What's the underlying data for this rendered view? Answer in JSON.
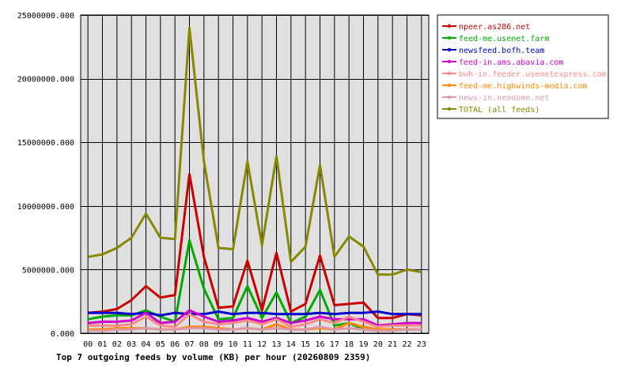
{
  "chart_data": {
    "type": "line",
    "title": "Top 7 outgoing feeds by volume (KB) per hour (20260809 2359)",
    "xlabel": "",
    "ylabel": "",
    "ylim": [
      0,
      25000000
    ],
    "yticks": [
      "0.000",
      "5000000.000",
      "10000000.000",
      "15000000.000",
      "20000000.000",
      "25000000.000"
    ],
    "grid": true,
    "legend_position": "right",
    "x": [
      "00",
      "01",
      "02",
      "03",
      "04",
      "05",
      "06",
      "07",
      "08",
      "09",
      "10",
      "11",
      "12",
      "13",
      "14",
      "15",
      "16",
      "17",
      "18",
      "19",
      "20",
      "21",
      "22",
      "23"
    ],
    "series": [
      {
        "name": "npeer.as286.net",
        "color": "#cc0000",
        "values": [
          1600000,
          1700000,
          1900000,
          2600000,
          3700000,
          2800000,
          3000000,
          12500000,
          6000000,
          2000000,
          2100000,
          5700000,
          1800000,
          6300000,
          1700000,
          2300000,
          6100000,
          2200000,
          2300000,
          2400000,
          1200000,
          1200000,
          1500000,
          1400000
        ]
      },
      {
        "name": "feed-me.usenet.farm",
        "color": "#00aa00",
        "values": [
          1100000,
          1300000,
          1400000,
          1400000,
          1800000,
          1300000,
          900000,
          7300000,
          3500000,
          1100000,
          1200000,
          3700000,
          1200000,
          3200000,
          800000,
          1300000,
          3400000,
          600000,
          800000,
          300000,
          200000,
          300000,
          300000,
          300000
        ]
      },
      {
        "name": "newsfeed.bofh.team",
        "color": "#0000cc",
        "values": [
          1600000,
          1600000,
          1600000,
          1500000,
          1600000,
          1400000,
          1600000,
          1500000,
          1500000,
          1700000,
          1500000,
          1600000,
          1600000,
          1500000,
          1500000,
          1500000,
          1600000,
          1500000,
          1600000,
          1600000,
          1700000,
          1500000,
          1500000,
          1500000
        ]
      },
      {
        "name": "feed-in.ams.abavia.com",
        "color": "#cc00cc",
        "values": [
          800000,
          900000,
          900000,
          1000000,
          1600000,
          800000,
          900000,
          1800000,
          1300000,
          900000,
          1000000,
          1200000,
          900000,
          1200000,
          800000,
          1000000,
          1300000,
          1100000,
          1100000,
          1100000,
          600000,
          700000,
          800000,
          800000
        ]
      },
      {
        "name": "bwh-in.feeder.usenetexpress.com",
        "color": "#ff8888",
        "values": [
          600000,
          600000,
          600000,
          700000,
          1300000,
          600000,
          500000,
          1500000,
          900000,
          700000,
          800000,
          1000000,
          700000,
          1100000,
          500000,
          700000,
          1100000,
          800000,
          1300000,
          900000,
          500000,
          600000,
          600000,
          600000
        ]
      },
      {
        "name": "feed-me.highwinds-media.com",
        "color": "#ff8800",
        "values": [
          300000,
          300000,
          400000,
          400000,
          400000,
          300000,
          300000,
          500000,
          500000,
          400000,
          300000,
          400000,
          300000,
          700000,
          300000,
          300000,
          400000,
          300000,
          800000,
          500000,
          300000,
          300000,
          300000,
          300000
        ]
      },
      {
        "name": "news-in.neodome.net",
        "color": "#dd99aa",
        "values": [
          200000,
          200000,
          300000,
          300000,
          400000,
          300000,
          300000,
          400000,
          400000,
          300000,
          300000,
          400000,
          300000,
          400000,
          300000,
          300000,
          500000,
          300000,
          400000,
          300000,
          200000,
          200000,
          300000,
          300000
        ]
      },
      {
        "name": "TOTAL (all feeds)",
        "color": "#888800",
        "values": [
          6000000,
          6200000,
          6700000,
          7500000,
          9400000,
          7500000,
          7400000,
          24000000,
          13500000,
          6700000,
          6600000,
          13500000,
          6900000,
          13900000,
          5600000,
          6800000,
          13200000,
          6000000,
          7600000,
          6800000,
          4600000,
          4600000,
          5000000,
          4800000
        ]
      }
    ]
  }
}
